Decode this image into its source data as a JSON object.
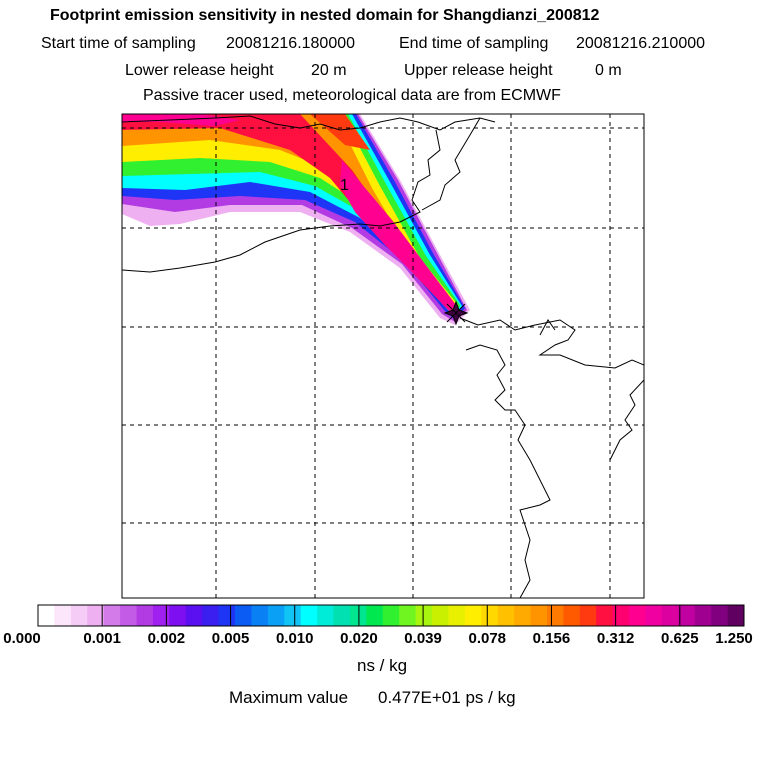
{
  "header": {
    "title": "Footprint emission sensitivity in nested domain for Shangdianzi_200812",
    "start_label": "Start time of sampling",
    "start_value": "20081216.180000",
    "end_label": "End time of sampling",
    "end_value": "20081216.210000",
    "lower_label": "Lower release height",
    "lower_value": "20 m",
    "upper_label": "Upper release height",
    "upper_value": "0 m",
    "tracer_note": "Passive tracer used, meteorological data are from ECMWF"
  },
  "map": {
    "plume_label": "1",
    "receptor_marker": "receptor-star-icon"
  },
  "colorbar": {
    "tick_labels": [
      "0.000",
      "0.001",
      "0.002",
      "0.005",
      "0.010",
      "0.020",
      "0.039",
      "0.078",
      "0.156",
      "0.312",
      "0.625",
      "1.250"
    ],
    "colors": [
      "#ffffff",
      "#fbe6fb",
      "#f5ccf5",
      "#eeb0f0",
      "#d27be9",
      "#c45be6",
      "#b33be3",
      "#a020f0",
      "#7d0ff0",
      "#5a10f0",
      "#3b1ef0",
      "#1e35f5",
      "#0a5cf5",
      "#0a80f5",
      "#0aa0f5",
      "#10c4f5",
      "#00ffff",
      "#00ecd8",
      "#00e0b0",
      "#00e690",
      "#00e850",
      "#30f030",
      "#70f520",
      "#a8f510",
      "#c8f000",
      "#e8f000",
      "#ffee00",
      "#ffd800",
      "#ffc000",
      "#ffaa00",
      "#ff9400",
      "#ff7a00",
      "#ff5a00",
      "#ff3a10",
      "#ff1040",
      "#ff0070",
      "#ff0090",
      "#f000a0",
      "#dc00a0",
      "#c000a0",
      "#a00090",
      "#800080",
      "#600060"
    ],
    "unit": "ns / kg",
    "max_label": "Maximum value",
    "max_value": "0.477E+01 ps / kg"
  }
}
